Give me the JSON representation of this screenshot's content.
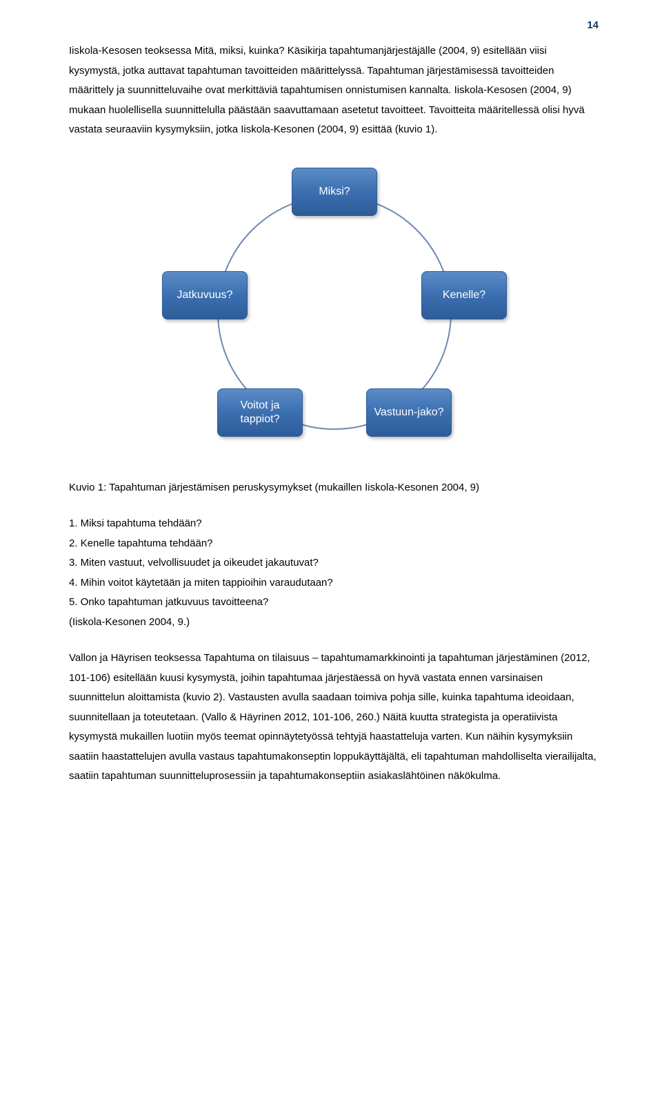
{
  "page_number": "14",
  "paragraphs": {
    "p1": "Iiskola-Kesosen teoksessa Mitä, miksi, kuinka? Käsikirja tapahtumanjärjestäjälle (2004, 9) esitellään viisi kysymystä, jotka auttavat tapahtuman tavoitteiden määrittelyssä. Tapahtuman järjestämisessä tavoitteiden määrittely ja suunnitteluvaihe ovat merkittäviä tapahtumisen onnistumisen kannalta. Iiskola-Kesosen (2004, 9) mukaan huolellisella suunnittelulla päästään saavuttamaan asetetut tavoitteet. Tavoitteita määritellessä olisi hyvä vastata seuraaviin kysymyksiin, jotka Iiskola-Kesonen (2004, 9) esittää (kuvio 1).",
    "p2": "Vallon ja Häyrisen teoksessa Tapahtuma on tilaisuus – tapahtumamarkkinointi ja tapahtuman järjestäminen (2012, 101-106) esitellään kuusi kysymystä, joihin tapahtumaa järjestäessä on hyvä vastata ennen varsinaisen suunnittelun aloittamista (kuvio 2). Vastausten avulla saadaan toimiva pohja sille, kuinka tapahtuma ideoidaan, suunnitellaan ja toteutetaan. (Vallo & Häyrinen 2012, 101-106, 260.) Näitä kuutta strategista ja operatiivista kysymystä mukaillen luotiin myös teemat opinnäytetyössä tehtyjä haastatteluja varten. Kun näihin kysymyksiin saatiin haastattelujen avulla vastaus tapahtumakonseptin loppukäyttäjältä, eli tapahtuman mahdolliselta vierailijalta, saatiin tapahtuman suunnitteluprosessiin ja tapahtumakonseptiin asiakaslähtöinen näkökulma."
  },
  "diagram": {
    "type": "cycle",
    "ring_color": "#6d89b2",
    "node_gradient_top": "#5b8cc7",
    "node_gradient_mid": "#3b6fb0",
    "node_gradient_bot": "#2e5c9a",
    "node_border": "#2c5a95",
    "node_text_color": "#ffffff",
    "node_fontsize": 16,
    "nodes": {
      "top": "Miksi?",
      "right": "Kenelle?",
      "botr": "Vastuun-jako?",
      "botl": "Voitot ja tappiot?",
      "left": "Jatkuvuus?"
    }
  },
  "caption": "Kuvio 1: Tapahtuman järjestämisen peruskysymykset (mukaillen Iiskola-Kesonen 2004, 9)",
  "list": {
    "i1": "1. Miksi tapahtuma tehdään?",
    "i2": "2. Kenelle tapahtuma tehdään?",
    "i3": "3. Miten vastuut, velvollisuudet ja oikeudet jakautuvat?",
    "i4": "4. Mihin voitot käytetään ja miten tappioihin varaudutaan?",
    "i5": "5. Onko tapahtuman jatkuvuus tavoitteena?",
    "i6": "(Iiskola-Kesonen 2004, 9.)"
  }
}
